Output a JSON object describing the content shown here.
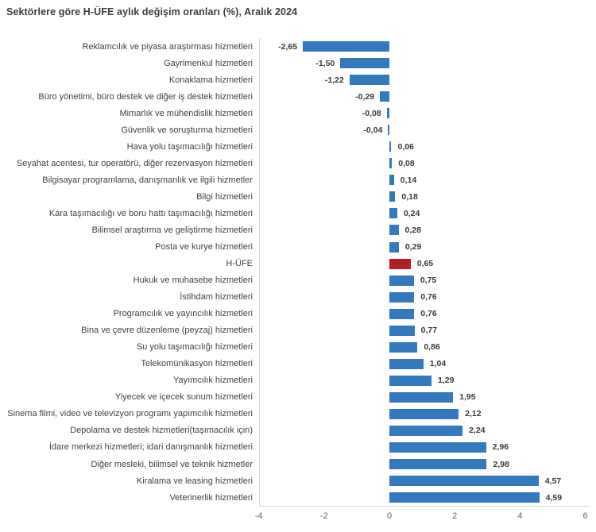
{
  "title": "Sektörlere göre H-ÜFE aylık değişim oranları (%), Aralık 2024",
  "chart_data": {
    "type": "bar",
    "orientation": "horizontal",
    "title": "Sektörlere göre H-ÜFE aylık değişim oranları (%), Aralık 2024",
    "categories": [
      "Reklamcılık ve piyasa araştırması hizmetleri",
      "Gayrimenkul hizmetleri",
      "Konaklama hizmetleri",
      "Büro yönetimi, büro destek ve diğer iş destek hizmetleri",
      "Mimarlık ve mühendislik hizmetleri",
      "Güvenlik ve soruşturma hizmetleri",
      "Hava yolu taşımacılığı hizmetleri",
      "Seyahat acentesi, tur operatörü, diğer rezervasyon hizmetleri",
      "Bilgisayar programlama, danışmanlık ve ilgili hizmetler",
      "Bilgi hizmetleri",
      "Kara taşımacılığı ve boru hattı taşımacılığı hizmetleri",
      "Bilimsel araştırma ve geliştirme hizmetleri",
      "Posta ve kurye hizmetleri",
      "H-ÜFE",
      "Hukuk ve muhasebe hizmetleri",
      "İstihdam hizmetleri",
      "Programcılık ve yayıncılık hizmetleri",
      "Bina ve çevre düzenleme (peyzaj) hizmetleri",
      "Su yolu taşımacılığı hizmetleri",
      "Telekomünikasyon hizmetleri",
      "Yayımcılık hizmetleri",
      "Yiyecek ve içecek sunum hizmetleri",
      "Sinema filmi, video ve televizyon programı yapımcılık hizmetleri",
      "Depolama ve destek hizmetleri(taşımacılık için)",
      "İdare merkezi hizmetleri; idari danışmanlık hizmetleri",
      "Diğer mesleki, bilimsel ve teknik hizmetler",
      "Kiralama ve leasing hizmetleri",
      "Veterinerlik hizmetleri"
    ],
    "values": [
      -2.65,
      -1.5,
      -1.22,
      -0.29,
      -0.08,
      -0.04,
      0.06,
      0.08,
      0.14,
      0.18,
      0.24,
      0.28,
      0.29,
      0.65,
      0.75,
      0.76,
      0.76,
      0.77,
      0.86,
      1.04,
      1.29,
      1.95,
      2.12,
      2.24,
      2.96,
      2.98,
      4.57,
      4.59
    ],
    "value_labels": [
      "-2,65",
      "-1,50",
      "-1,22",
      "-0,29",
      "-0,08",
      "-0,04",
      "0,06",
      "0,08",
      "0,14",
      "0,18",
      "0,24",
      "0,28",
      "0,29",
      "0,65",
      "0,75",
      "0,76",
      "0,76",
      "0,77",
      "0,86",
      "1,04",
      "1,29",
      "1,95",
      "2,12",
      "2,24",
      "2,96",
      "2,98",
      "4,57",
      "4,59"
    ],
    "highlight_index": 13,
    "bar_color": "#3279be",
    "highlight_color": "#b02022",
    "xlabel": "",
    "ylabel": "",
    "xlim": [
      -4,
      6
    ],
    "x_ticks": [
      -4,
      -2,
      0,
      2,
      4,
      6
    ],
    "x_tick_labels": [
      "-4",
      "-2",
      "0",
      "2",
      "4",
      "6"
    ],
    "grid": false,
    "legend": "none"
  }
}
